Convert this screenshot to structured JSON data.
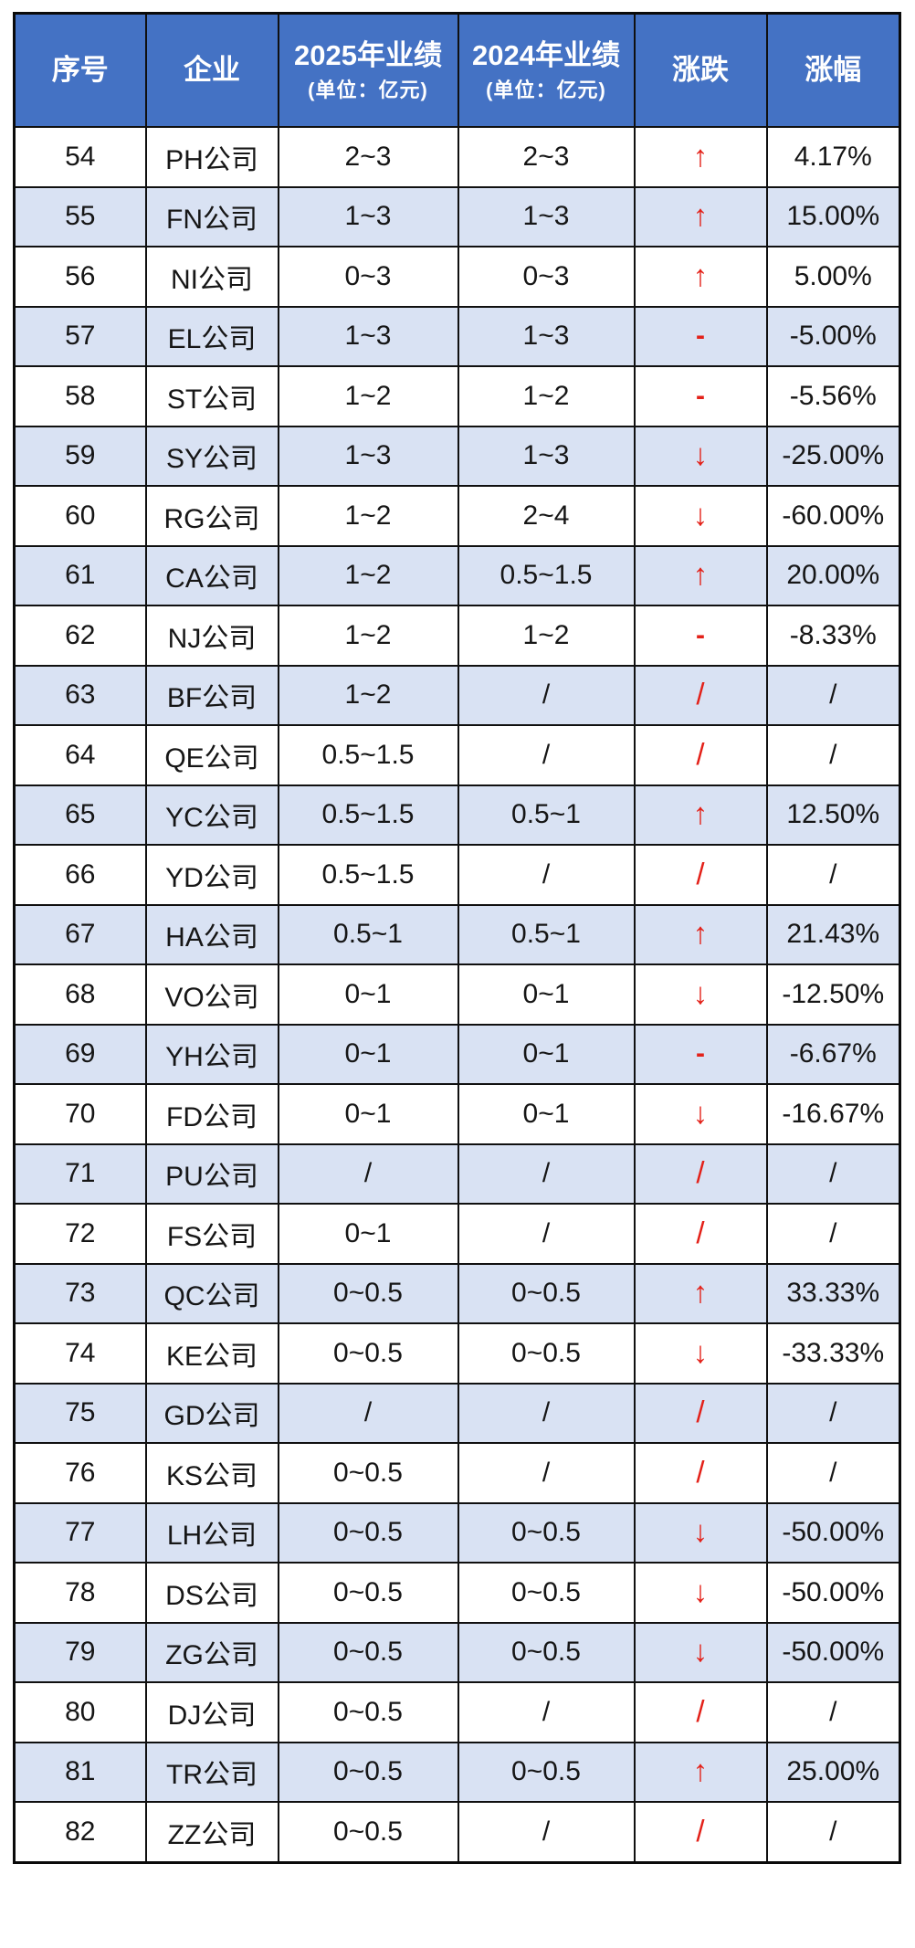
{
  "table": {
    "columns": [
      {
        "label": "序号"
      },
      {
        "label": "企业"
      },
      {
        "label": "2025年业绩",
        "unit": "(单位：亿元)"
      },
      {
        "label": "2024年业绩",
        "unit": "(单位：亿元)"
      },
      {
        "label": "涨跌"
      },
      {
        "label": "涨幅"
      }
    ],
    "symbols": {
      "up": "↑",
      "down": "↓",
      "flat": "-",
      "na": "/"
    },
    "rows": [
      {
        "no": "54",
        "company": "PH公司",
        "y2025": "2~3",
        "y2024": "2~3",
        "trend": "up",
        "change": "4.17%"
      },
      {
        "no": "55",
        "company": "FN公司",
        "y2025": "1~3",
        "y2024": "1~3",
        "trend": "up",
        "change": "15.00%"
      },
      {
        "no": "56",
        "company": "NI公司",
        "y2025": "0~3",
        "y2024": "0~3",
        "trend": "up",
        "change": "5.00%"
      },
      {
        "no": "57",
        "company": "EL公司",
        "y2025": "1~3",
        "y2024": "1~3",
        "trend": "flat",
        "change": "-5.00%"
      },
      {
        "no": "58",
        "company": "ST公司",
        "y2025": "1~2",
        "y2024": "1~2",
        "trend": "flat",
        "change": "-5.56%"
      },
      {
        "no": "59",
        "company": "SY公司",
        "y2025": "1~3",
        "y2024": "1~3",
        "trend": "down",
        "change": "-25.00%"
      },
      {
        "no": "60",
        "company": "RG公司",
        "y2025": "1~2",
        "y2024": "2~4",
        "trend": "down",
        "change": "-60.00%"
      },
      {
        "no": "61",
        "company": "CA公司",
        "y2025": "1~2",
        "y2024": "0.5~1.5",
        "trend": "up",
        "change": "20.00%"
      },
      {
        "no": "62",
        "company": "NJ公司",
        "y2025": "1~2",
        "y2024": "1~2",
        "trend": "flat",
        "change": "-8.33%"
      },
      {
        "no": "63",
        "company": "BF公司",
        "y2025": "1~2",
        "y2024": "/",
        "trend": "na",
        "change": "/"
      },
      {
        "no": "64",
        "company": "QE公司",
        "y2025": "0.5~1.5",
        "y2024": "/",
        "trend": "na",
        "change": "/"
      },
      {
        "no": "65",
        "company": "YC公司",
        "y2025": "0.5~1.5",
        "y2024": "0.5~1",
        "trend": "up",
        "change": "12.50%"
      },
      {
        "no": "66",
        "company": "YD公司",
        "y2025": "0.5~1.5",
        "y2024": "/",
        "trend": "na",
        "change": "/"
      },
      {
        "no": "67",
        "company": "HA公司",
        "y2025": "0.5~1",
        "y2024": "0.5~1",
        "trend": "up",
        "change": "21.43%"
      },
      {
        "no": "68",
        "company": "VO公司",
        "y2025": "0~1",
        "y2024": "0~1",
        "trend": "down",
        "change": "-12.50%"
      },
      {
        "no": "69",
        "company": "YH公司",
        "y2025": "0~1",
        "y2024": "0~1",
        "trend": "flat",
        "change": "-6.67%"
      },
      {
        "no": "70",
        "company": "FD公司",
        "y2025": "0~1",
        "y2024": "0~1",
        "trend": "down",
        "change": "-16.67%"
      },
      {
        "no": "71",
        "company": "PU公司",
        "y2025": "/",
        "y2024": "/",
        "trend": "na",
        "change": "/"
      },
      {
        "no": "72",
        "company": "FS公司",
        "y2025": "0~1",
        "y2024": "/",
        "trend": "na",
        "change": "/"
      },
      {
        "no": "73",
        "company": "QC公司",
        "y2025": "0~0.5",
        "y2024": "0~0.5",
        "trend": "up",
        "change": "33.33%"
      },
      {
        "no": "74",
        "company": "KE公司",
        "y2025": "0~0.5",
        "y2024": "0~0.5",
        "trend": "down",
        "change": "-33.33%"
      },
      {
        "no": "75",
        "company": "GD公司",
        "y2025": "/",
        "y2024": "/",
        "trend": "na",
        "change": "/"
      },
      {
        "no": "76",
        "company": "KS公司",
        "y2025": "0~0.5",
        "y2024": "/",
        "trend": "na",
        "change": "/"
      },
      {
        "no": "77",
        "company": "LH公司",
        "y2025": "0~0.5",
        "y2024": "0~0.5",
        "trend": "down",
        "change": "-50.00%"
      },
      {
        "no": "78",
        "company": "DS公司",
        "y2025": "0~0.5",
        "y2024": "0~0.5",
        "trend": "down",
        "change": "-50.00%"
      },
      {
        "no": "79",
        "company": "ZG公司",
        "y2025": "0~0.5",
        "y2024": "0~0.5",
        "trend": "down",
        "change": "-50.00%"
      },
      {
        "no": "80",
        "company": "DJ公司",
        "y2025": "0~0.5",
        "y2024": "/",
        "trend": "na",
        "change": "/"
      },
      {
        "no": "81",
        "company": "TR公司",
        "y2025": "0~0.5",
        "y2024": "0~0.5",
        "trend": "up",
        "change": "25.00%"
      },
      {
        "no": "82",
        "company": "ZZ公司",
        "y2025": "0~0.5",
        "y2024": "/",
        "trend": "na",
        "change": "/"
      }
    ]
  },
  "colors": {
    "header_bg": "#4472C4",
    "header_text": "#FFFFFF",
    "alt_row_bg": "#D9E2F3",
    "row_bg": "#FFFFFF",
    "trend_red": "#E32119",
    "text": "#161616",
    "border": "#101010"
  }
}
